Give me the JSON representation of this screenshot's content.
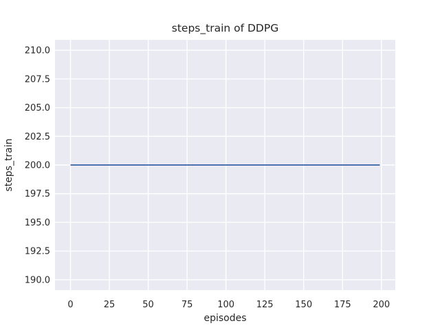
{
  "figure": {
    "background": "#ffffff"
  },
  "chart_data": {
    "type": "line",
    "title": "steps_train of DDPG",
    "xlabel": "episodes",
    "ylabel": "steps_train",
    "plot_bg_color": "#eaeaf2",
    "grid_color": "#ffffff",
    "text_color": "#262626",
    "grid": true,
    "legend": false,
    "xlim": [
      -9.95,
      208.95
    ],
    "ylim": [
      189.1,
      210.9
    ],
    "xticks": [
      0,
      25,
      50,
      75,
      100,
      125,
      150,
      175,
      200
    ],
    "yticks": [
      190.0,
      192.5,
      195.0,
      197.5,
      200.0,
      202.5,
      205.0,
      207.5,
      210.0
    ],
    "ytick_decimals": 1,
    "series": [
      {
        "name": "steps_train",
        "color": "#4c72b0",
        "line_width": 2,
        "x": [
          0,
          199
        ],
        "y": [
          200,
          200
        ]
      }
    ]
  }
}
